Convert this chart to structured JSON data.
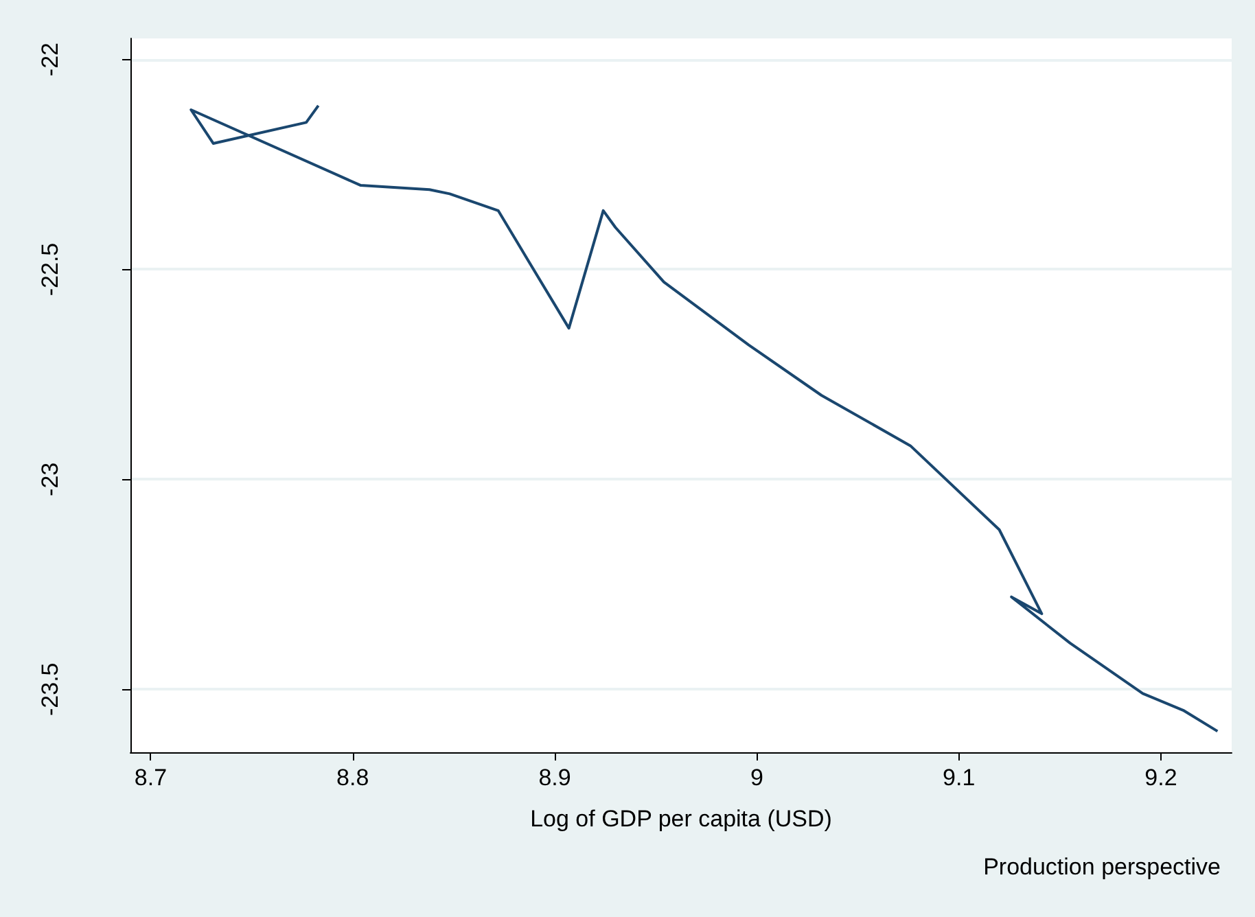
{
  "chart_data": {
    "type": "line",
    "xlabel": "Log of GDP per capita (USD)",
    "annotations": [
      "Production perspective"
    ],
    "x": [
      8.783,
      8.777,
      8.731,
      8.72,
      8.804,
      8.838,
      8.848,
      8.872,
      8.907,
      8.924,
      8.93,
      8.954,
      8.996,
      9.032,
      9.076,
      9.12,
      9.141,
      9.126,
      9.155,
      9.191,
      9.211,
      9.228
    ],
    "series": [
      {
        "color": "#1a476f",
        "values": [
          -22.11,
          -22.15,
          -22.2,
          -22.12,
          -22.3,
          -22.31,
          -22.32,
          -22.36,
          -22.64,
          -22.36,
          -22.4,
          -22.53,
          -22.68,
          -22.8,
          -22.92,
          -23.12,
          -23.32,
          -23.28,
          -23.39,
          -23.51,
          -23.55,
          -23.6
        ]
      }
    ],
    "xlim": [
      8.69,
      9.235
    ],
    "xticks": [
      8.7,
      8.8,
      8.9,
      9,
      9.1,
      9.2
    ],
    "ylim": [
      -23.65,
      -21.95
    ],
    "yticks": [
      -22,
      -22.5,
      -23,
      -23.5
    ],
    "grid": "y",
    "marker": "none",
    "line_style": "solid"
  }
}
